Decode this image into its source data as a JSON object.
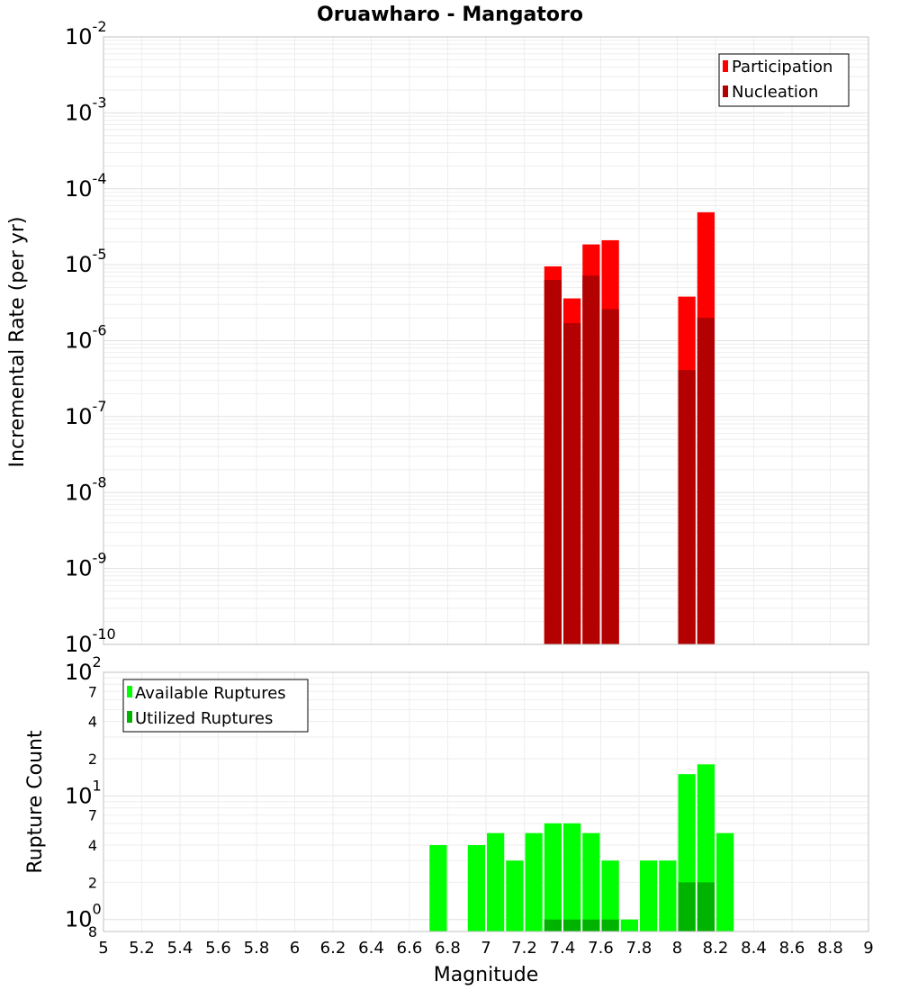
{
  "title": "Oruawharo - Mangatoro",
  "xlabel": "Magnitude",
  "colors": {
    "participation": "#ff0000",
    "nucleation": "#b30000",
    "available": "#00ff00",
    "utilized": "#00b300",
    "grid": "#e6e6e6",
    "frame": "#c0c0c0"
  },
  "chart_data": [
    {
      "type": "bar",
      "title": "Oruawharo - Mangatoro",
      "ylabel": "Incremental Rate (per yr)",
      "xlabel": "",
      "xlim": [
        5,
        9
      ],
      "ylim": [
        1e-10,
        0.01
      ],
      "yscale": "log",
      "grid": true,
      "legend_position": "top-right",
      "y_tick_labels": [
        {
          "base": "10",
          "exp": "-2"
        },
        {
          "base": "10",
          "exp": "-3"
        },
        {
          "base": "10",
          "exp": "-4"
        },
        {
          "base": "10",
          "exp": "-5"
        },
        {
          "base": "10",
          "exp": "-6"
        },
        {
          "base": "10",
          "exp": "-7"
        },
        {
          "base": "10",
          "exp": "-8"
        },
        {
          "base": "10",
          "exp": "-9"
        },
        {
          "base": "10",
          "exp": "-10"
        }
      ],
      "x": [
        7.35,
        7.45,
        7.55,
        7.65,
        8.05,
        8.15
      ],
      "series": [
        {
          "name": "Participation",
          "values": [
            9.5e-06,
            3.6e-06,
            1.85e-05,
            2.1e-05,
            3.8e-06,
            4.9e-05
          ]
        },
        {
          "name": "Nucleation",
          "values": [
            6.3e-06,
            1.7e-06,
            7.2e-06,
            2.6e-06,
            4.1e-07,
            2e-06
          ]
        }
      ]
    },
    {
      "type": "bar",
      "ylabel": "Rupture Count",
      "xlabel": "Magnitude",
      "xlim": [
        5,
        9
      ],
      "ylim": [
        0.8,
        100
      ],
      "yscale": "log",
      "grid": true,
      "legend_position": "top-left",
      "y_tick_labels": [
        {
          "value": 100,
          "base": "10",
          "exp": "2",
          "minor": ""
        },
        {
          "value": 70,
          "base": "",
          "exp": "",
          "minor": "7"
        },
        {
          "value": 40,
          "base": "",
          "exp": "",
          "minor": "4"
        },
        {
          "value": 20,
          "base": "",
          "exp": "",
          "minor": "2"
        },
        {
          "value": 10,
          "base": "10",
          "exp": "1",
          "minor": ""
        },
        {
          "value": 7,
          "base": "",
          "exp": "",
          "minor": "7"
        },
        {
          "value": 4,
          "base": "",
          "exp": "",
          "minor": "4"
        },
        {
          "value": 2,
          "base": "",
          "exp": "",
          "minor": "2"
        },
        {
          "value": 1,
          "base": "10",
          "exp": "0",
          "minor": ""
        },
        {
          "value": 0.8,
          "base": "",
          "exp": "",
          "minor": "8"
        }
      ],
      "x_tick_labels": [
        "5",
        "5.2",
        "5.4",
        "5.6",
        "5.8",
        "6",
        "6.2",
        "6.4",
        "6.6",
        "6.8",
        "7",
        "7.2",
        "7.4",
        "7.6",
        "7.8",
        "8",
        "8.2",
        "8.4",
        "8.6",
        "8.8",
        "9"
      ],
      "x_ticks": [
        5,
        5.2,
        5.4,
        5.6,
        5.8,
        6,
        6.2,
        6.4,
        6.6,
        6.8,
        7,
        7.2,
        7.4,
        7.6,
        7.8,
        8,
        8.2,
        8.4,
        8.6,
        8.8,
        9
      ],
      "x": [
        6.75,
        6.95,
        7.05,
        7.15,
        7.25,
        7.35,
        7.45,
        7.55,
        7.65,
        7.75,
        7.85,
        7.95,
        8.05,
        8.15,
        8.25
      ],
      "series": [
        {
          "name": "Available Ruptures",
          "values": [
            4,
            4,
            5,
            3,
            5,
            6,
            6,
            5,
            3,
            1,
            3,
            3,
            15,
            18,
            5
          ]
        },
        {
          "name": "Utilized Ruptures",
          "values": [
            0,
            0,
            0,
            0,
            0,
            1,
            1,
            1,
            1,
            0,
            0,
            0,
            2,
            2,
            0
          ]
        }
      ]
    }
  ]
}
